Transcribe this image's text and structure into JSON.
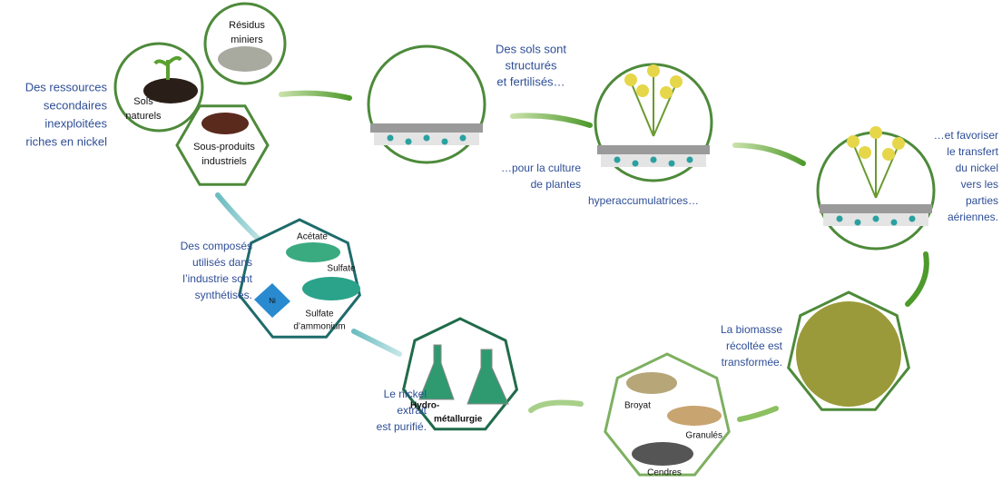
{
  "resources": {
    "caption": [
      "Des ressources",
      "secondaires",
      "inexploitées",
      "riches en nickel"
    ],
    "mine_residues": [
      "Résidus",
      "miniers"
    ],
    "natural_soils": [
      "Sols",
      "naturels"
    ],
    "byproducts": [
      "Sous-produits",
      "industriels"
    ]
  },
  "soils": {
    "caption": [
      "Des sols  sont",
      "structurés",
      "et fertilisés…"
    ]
  },
  "culture": {
    "caption": [
      "…pour la culture",
      "de plantes",
      "hyperaccumulatrices…"
    ]
  },
  "transfer": {
    "caption": [
      "…et favoriser",
      "le transfert",
      "du nickel",
      "vers les",
      "parties",
      "aériennes."
    ]
  },
  "biomass": {
    "caption": [
      "La biomasse",
      "récoltée est",
      "transformée."
    ]
  },
  "forms": {
    "items": [
      "Broyat",
      "Granulés",
      "Cendres"
    ]
  },
  "hydro": {
    "caption": [
      "Le nickel",
      "extrait",
      "est purifié."
    ],
    "label": [
      "Hydro-",
      "métallurgie"
    ]
  },
  "compounds": {
    "caption": [
      "Des composés",
      "utilisés dans",
      "l’industrie sont",
      "synthétisés."
    ],
    "acetate": "Acétate",
    "sulfate": "Sulfate",
    "ammonium_sulfate": [
      "Sulfate",
      "d’ammonium"
    ],
    "ni": "Ni"
  }
}
